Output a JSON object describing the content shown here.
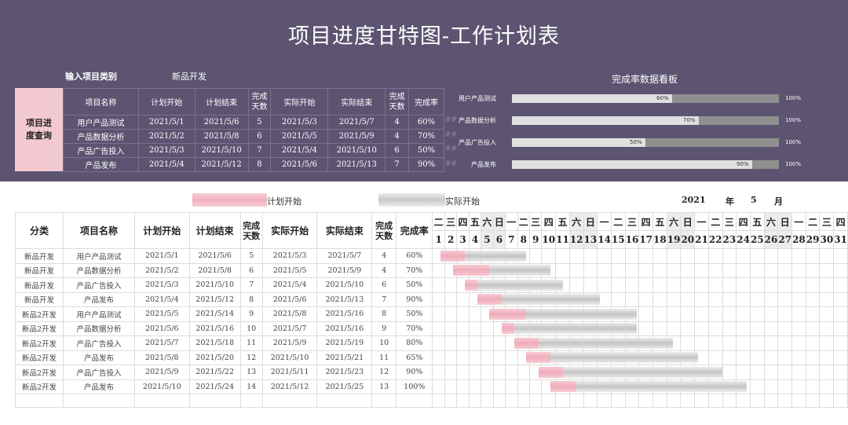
{
  "title": "项目进度甘特图-工作计划表",
  "filter": {
    "label": "输入项目类别",
    "value": "新品开发"
  },
  "query_button": "项目进度查询",
  "headers": {
    "category": "分类",
    "name": "项目名称",
    "plan_start": "计划开始",
    "plan_end": "计划结束",
    "plan_days": "完成天数",
    "actual_start": "实际开始",
    "actual_end": "实际结束",
    "actual_days": "完成天数",
    "rate": "完成率"
  },
  "summary_rows": [
    {
      "name": "用户产品测试",
      "plan_start": "2021/5/1",
      "plan_end": "2021/5/6",
      "plan_days": "5",
      "actual_start": "2021/5/3",
      "actual_end": "2021/5/7",
      "actual_days": "4",
      "rate": "60%",
      "hash": "##"
    },
    {
      "name": "产品数据分析",
      "plan_start": "2021/5/2",
      "plan_end": "2021/5/8",
      "plan_days": "6",
      "actual_start": "2021/5/5",
      "actual_end": "2021/5/9",
      "actual_days": "4",
      "rate": "70%",
      "hash": "##"
    },
    {
      "name": "产品广告投入",
      "plan_start": "2021/5/3",
      "plan_end": "2021/5/10",
      "plan_days": "7",
      "actual_start": "2021/5/4",
      "actual_end": "2021/5/10",
      "actual_days": "6",
      "rate": "50%",
      "hash": "##"
    },
    {
      "name": "产品发布",
      "plan_start": "2021/5/4",
      "plan_end": "2021/5/12",
      "plan_days": "8",
      "actual_start": "2021/5/6",
      "actual_end": "2021/5/13",
      "actual_days": "7",
      "rate": "90%",
      "hash": "##"
    }
  ],
  "dashboard": {
    "title": "完成率数据看板",
    "items": [
      {
        "label": "用户产品测试",
        "value": 0.6,
        "value_label": "60%",
        "max_label": "100%"
      },
      {
        "label": "产品数据分析",
        "value": 0.7,
        "value_label": "70%",
        "max_label": "100%"
      },
      {
        "label": "产品广告投入",
        "value": 0.5,
        "value_label": "50%",
        "max_label": "100%"
      },
      {
        "label": "产品发布",
        "value": 0.9,
        "value_label": "90%",
        "max_label": "100%"
      }
    ]
  },
  "legend": {
    "plan": "计划开始",
    "actual": "实际开始"
  },
  "calendar": {
    "year": "2021",
    "year_unit": "年",
    "month": "5",
    "month_unit": "月",
    "weekdays": [
      "二",
      "三",
      "四",
      "五",
      "六",
      "日",
      "一",
      "二",
      "三",
      "四",
      "五",
      "六",
      "日",
      "一",
      "二",
      "三",
      "四",
      "五",
      "六",
      "日",
      "一",
      "二",
      "三",
      "四",
      "五",
      "六",
      "日",
      "一",
      "二",
      "三",
      "四"
    ],
    "days": [
      "1",
      "2",
      "3",
      "4",
      "5",
      "6",
      "7",
      "8",
      "9",
      "10",
      "11",
      "12",
      "13",
      "14",
      "15",
      "16",
      "17",
      "18",
      "19",
      "20",
      "21",
      "22",
      "23",
      "24",
      "25",
      "26",
      "27",
      "28",
      "29",
      "30",
      "31"
    ]
  },
  "tasks": [
    {
      "category": "新品开发",
      "name": "用户产品测试",
      "plan_start": "2021/5/1",
      "plan_end": "2021/5/6",
      "plan_days": "5",
      "actual_start": "2021/5/3",
      "actual_end": "2021/5/7",
      "actual_days": "4",
      "rate": "60%"
    },
    {
      "category": "新品开发",
      "name": "产品数据分析",
      "plan_start": "2021/5/2",
      "plan_end": "2021/5/8",
      "plan_days": "6",
      "actual_start": "2021/5/5",
      "actual_end": "2021/5/9",
      "actual_days": "4",
      "rate": "70%"
    },
    {
      "category": "新品开发",
      "name": "产品广告投入",
      "plan_start": "2021/5/3",
      "plan_end": "2021/5/10",
      "plan_days": "7",
      "actual_start": "2021/5/4",
      "actual_end": "2021/5/10",
      "actual_days": "6",
      "rate": "50%"
    },
    {
      "category": "新品开发",
      "name": "产品发布",
      "plan_start": "2021/5/4",
      "plan_end": "2021/5/12",
      "plan_days": "8",
      "actual_start": "2021/5/6",
      "actual_end": "2021/5/13",
      "actual_days": "7",
      "rate": "90%"
    },
    {
      "category": "新品2开发",
      "name": "用户产品测试",
      "plan_start": "2021/5/5",
      "plan_end": "2021/5/14",
      "plan_days": "9",
      "actual_start": "2021/5/8",
      "actual_end": "2021/5/16",
      "actual_days": "8",
      "rate": "50%"
    },
    {
      "category": "新品2开发",
      "name": "产品数据分析",
      "plan_start": "2021/5/6",
      "plan_end": "2021/5/16",
      "plan_days": "10",
      "actual_start": "2021/5/7",
      "actual_end": "2021/5/16",
      "actual_days": "9",
      "rate": "70%"
    },
    {
      "category": "新品2开发",
      "name": "产品广告投入",
      "plan_start": "2021/5/7",
      "plan_end": "2021/5/18",
      "plan_days": "11",
      "actual_start": "2021/5/9",
      "actual_end": "2021/5/19",
      "actual_days": "10",
      "rate": "80%"
    },
    {
      "category": "新品2开发",
      "name": "产品发布",
      "plan_start": "2021/5/8",
      "plan_end": "2021/5/20",
      "plan_days": "12",
      "actual_start": "2021/5/10",
      "actual_end": "2021/5/21",
      "actual_days": "11",
      "rate": "65%"
    },
    {
      "category": "新品2开发",
      "name": "产品广告投入",
      "plan_start": "2021/5/9",
      "plan_end": "2021/5/22",
      "plan_days": "13",
      "actual_start": "2021/5/11",
      "actual_end": "2021/5/23",
      "actual_days": "12",
      "rate": "90%"
    },
    {
      "category": "新品2开发",
      "name": "产品发布",
      "plan_start": "2021/5/10",
      "plan_end": "2021/5/24",
      "plan_days": "14",
      "actual_start": "2021/5/12",
      "actual_end": "2021/5/25",
      "actual_days": "13",
      "rate": "100%"
    }
  ]
}
